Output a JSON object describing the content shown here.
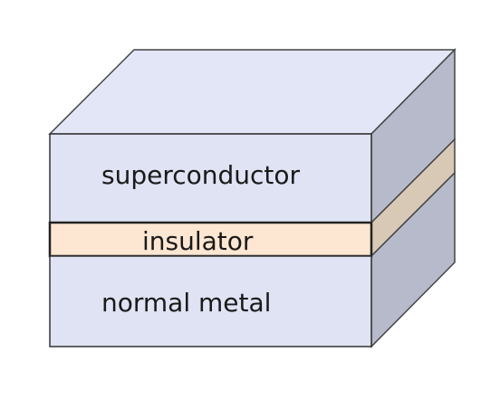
{
  "diagram": {
    "layers": [
      {
        "id": "superconductor",
        "label": "superconductor",
        "front_color": "#dfe3f3",
        "side_color": "#b6bacb",
        "top_color": "#e3e6f6"
      },
      {
        "id": "insulator",
        "label": "insulator",
        "front_color": "#fde6d2",
        "side_color": "#d8c8b6"
      },
      {
        "id": "normal-metal",
        "label": "normal metal",
        "front_color": "#dfe3f3",
        "side_color": "#b6bacb"
      }
    ],
    "edge_color": "#2a2a2a"
  }
}
